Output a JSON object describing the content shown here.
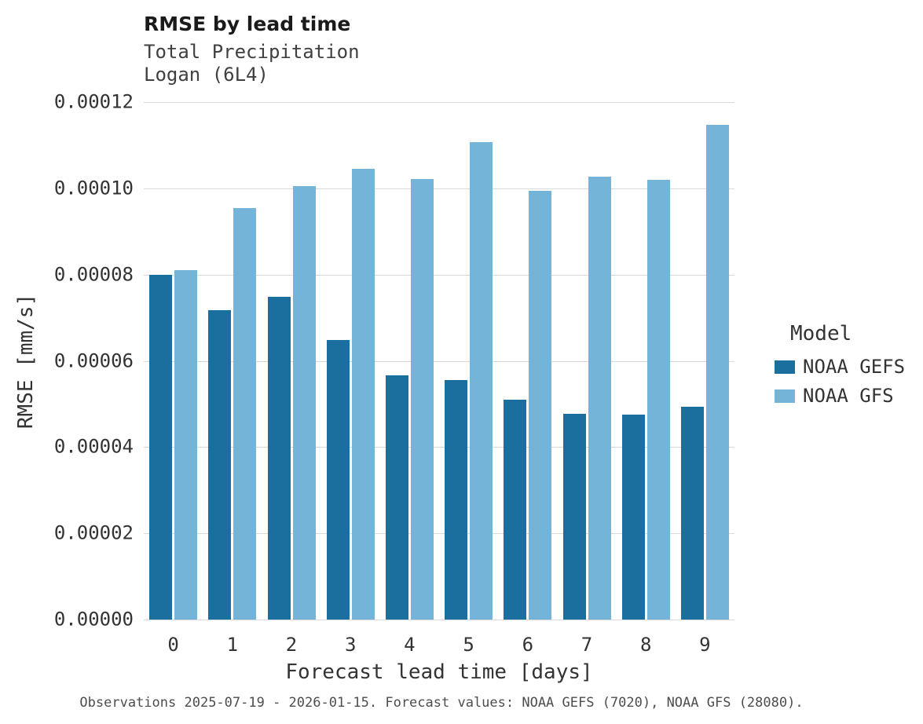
{
  "caption": "Observations 2025-07-19 - 2026-01-15. Forecast values: NOAA GEFS (7020), NOAA GFS (28080).",
  "legend": {
    "title": "Model",
    "entries": [
      {
        "label": "NOAA GEFS",
        "color": "#1a6f9e"
      },
      {
        "label": "NOAA GFS",
        "color": "#74b4d9"
      }
    ]
  },
  "chart_data": {
    "type": "bar",
    "title": "RMSE by lead time",
    "subtitle": [
      "Total Precipitation",
      "Logan (6L4)"
    ],
    "xlabel": "Forecast lead time [days]",
    "ylabel": "RMSE [mm/s]",
    "categories": [
      "0",
      "1",
      "2",
      "3",
      "4",
      "5",
      "6",
      "7",
      "8",
      "9"
    ],
    "series": [
      {
        "name": "NOAA GEFS",
        "color": "#1a6f9e",
        "values": [
          7.99e-05,
          7.18e-05,
          7.48e-05,
          6.48e-05,
          5.67e-05,
          5.55e-05,
          5.1e-05,
          4.77e-05,
          4.75e-05,
          4.94e-05
        ]
      },
      {
        "name": "NOAA GFS",
        "color": "#74b4d9",
        "values": [
          8.1e-05,
          9.55e-05,
          0.0001005,
          0.0001046,
          0.0001022,
          0.0001108,
          9.95e-05,
          0.0001027,
          0.0001019,
          0.0001148
        ]
      }
    ],
    "ylim": [
      0,
      0.00012
    ],
    "yticks": [
      0,
      2e-05,
      4e-05,
      6e-05,
      8e-05,
      0.0001,
      0.00012
    ],
    "ytick_labels": [
      "0.00000",
      "0.00002",
      "0.00004",
      "0.00006",
      "0.00008",
      "0.00010",
      "0.00012"
    ],
    "grid": true,
    "grid_color": "#d9d9d9",
    "legend_position": "right"
  }
}
